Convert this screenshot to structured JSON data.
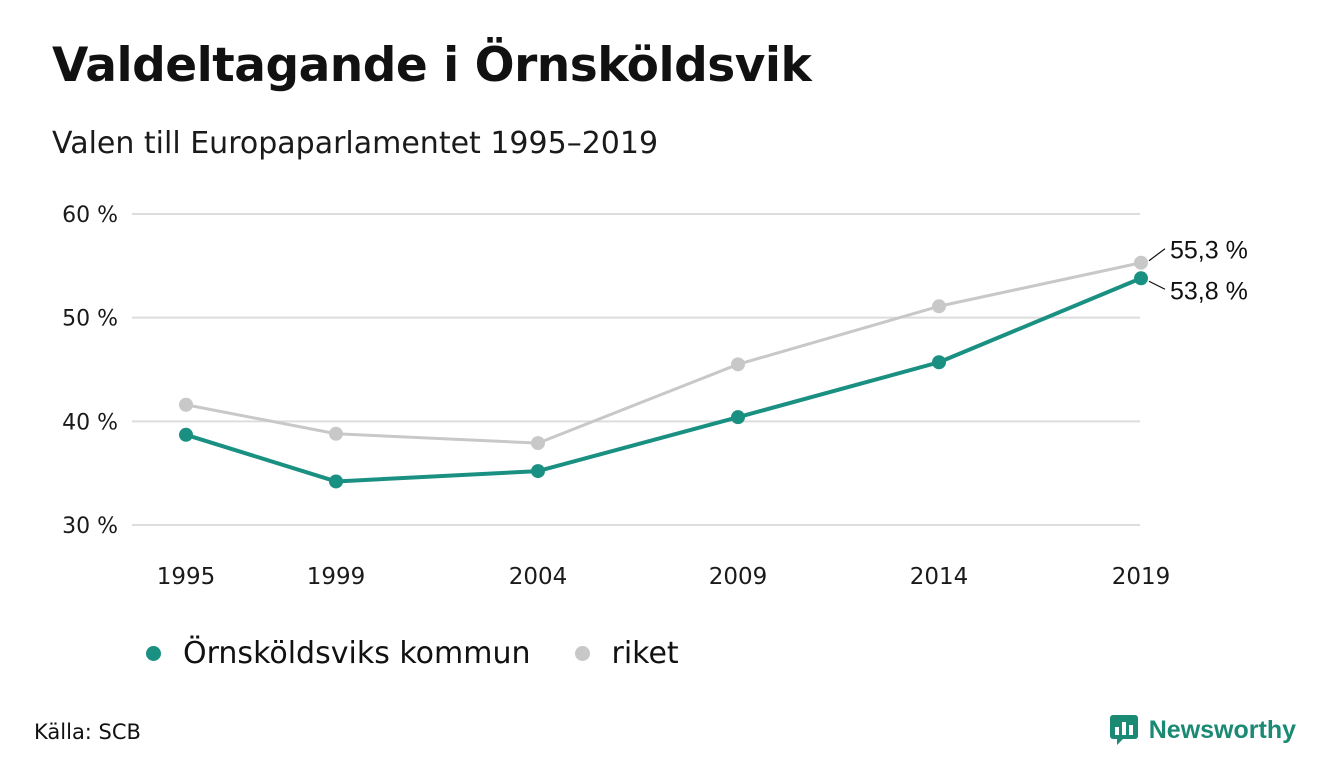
{
  "header": {
    "title": "Valdeltagande i Örnsköldsvik",
    "subtitle": "Valen till Europaparlamentet 1995–2019"
  },
  "footer": {
    "source": "Källa: SCB",
    "brand": "Newsworthy"
  },
  "colors": {
    "kommun": "#1a9082",
    "riket": "#c8c8c8",
    "grid": "#dddddd",
    "brand": "#1a8a74"
  },
  "chart_data": {
    "type": "line",
    "title": "Valdeltagande i Örnsköldsvik",
    "subtitle": "Valen till Europaparlamentet 1995–2019",
    "categories": [
      "1995",
      "1999",
      "2004",
      "2009",
      "2014",
      "2019"
    ],
    "ylim": [
      30,
      60
    ],
    "yticks": [
      {
        "value": 60,
        "label": "60 %"
      },
      {
        "value": 50,
        "label": "50 %"
      },
      {
        "value": 40,
        "label": "40 %"
      },
      {
        "value": 30,
        "label": "30 %"
      }
    ],
    "grid": true,
    "legend_position": "bottom-left",
    "series": [
      {
        "name": "riket",
        "color": "#c8c8c8",
        "values": [
          41.6,
          38.8,
          37.9,
          45.5,
          51.1,
          55.3
        ],
        "end_label": "55,3 %"
      },
      {
        "name": "Örnsköldsviks kommun",
        "color": "#1a9082",
        "values": [
          38.7,
          34.2,
          35.2,
          40.4,
          45.7,
          53.8
        ],
        "end_label": "53,8 %"
      }
    ],
    "legend": [
      {
        "name": "Örnsköldsviks kommun",
        "color": "#1a9082"
      },
      {
        "name": "riket",
        "color": "#c8c8c8"
      }
    ]
  }
}
